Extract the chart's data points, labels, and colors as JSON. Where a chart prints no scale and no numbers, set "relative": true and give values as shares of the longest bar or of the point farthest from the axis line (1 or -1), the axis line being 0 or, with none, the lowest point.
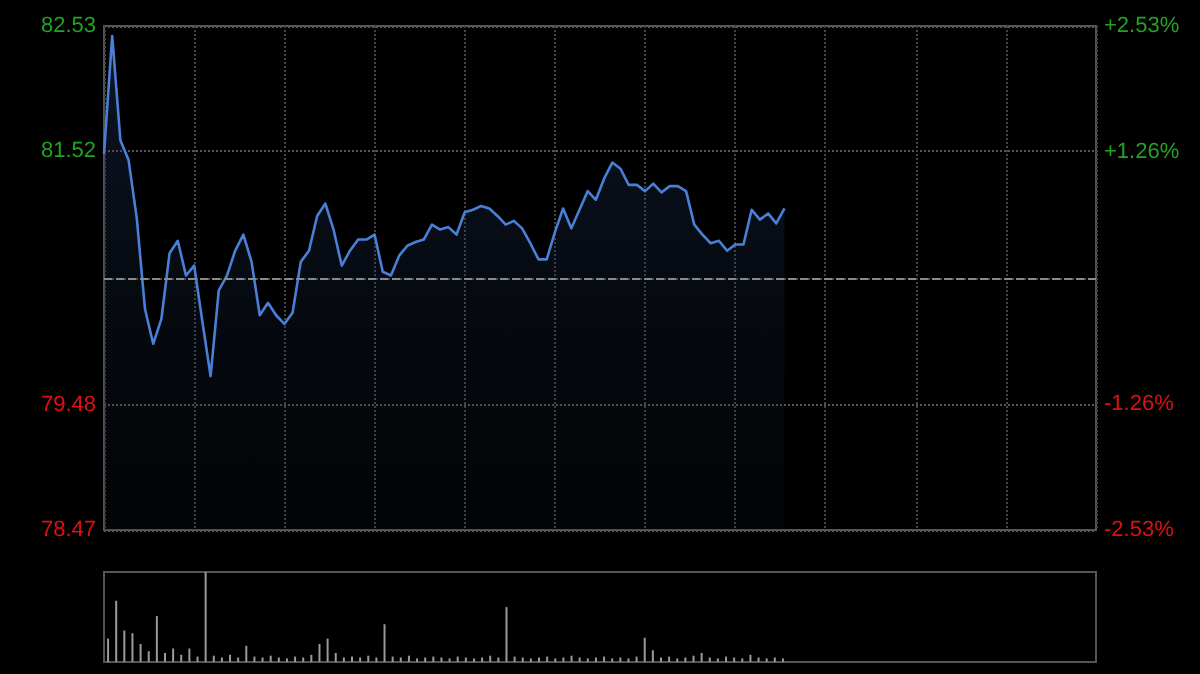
{
  "chart_data": [
    {
      "type": "area",
      "categories": [
        null,
        null,
        null,
        null,
        null,
        null,
        null,
        null,
        null,
        null,
        null,
        null,
        null,
        null,
        null,
        null,
        null,
        null,
        null,
        null,
        null,
        null,
        null,
        null,
        null,
        null,
        null,
        null,
        null,
        null,
        null,
        null,
        null,
        null,
        null,
        null,
        null,
        null,
        null,
        null,
        null,
        null,
        null,
        null,
        null,
        null,
        null,
        null,
        null,
        null,
        null,
        null,
        null,
        null,
        null,
        null,
        null,
        null,
        null,
        null,
        null,
        null,
        null,
        null,
        null,
        null,
        null,
        null,
        null,
        null,
        null,
        null,
        null,
        null,
        null,
        null,
        null,
        null,
        null,
        null,
        null,
        null,
        null,
        null
      ],
      "series": [
        {
          "color": "#4a7fd6",
          "values": [
            81.5,
            82.45,
            81.61,
            81.45,
            80.98,
            80.25,
            79.97,
            80.17,
            80.7,
            80.8,
            80.52,
            80.6,
            80.15,
            79.71,
            80.4,
            80.52,
            80.72,
            80.85,
            80.63,
            80.2,
            80.3,
            80.2,
            80.13,
            80.22,
            80.63,
            80.72,
            81.0,
            81.1,
            80.89,
            80.6,
            80.72,
            80.81,
            80.81,
            80.85,
            80.55,
            80.52,
            80.68,
            80.76,
            80.79,
            80.81,
            80.93,
            80.89,
            80.91,
            80.85,
            81.03,
            81.05,
            81.08,
            81.06,
            81.0,
            80.93,
            80.96,
            80.9,
            80.78,
            80.65,
            80.65,
            80.87,
            81.06,
            80.9,
            81.05,
            81.2,
            81.13,
            81.3,
            81.43,
            81.38,
            81.25,
            81.25,
            81.2,
            81.26,
            81.19,
            81.24,
            81.24,
            81.2,
            80.93,
            80.85,
            80.78,
            80.8,
            80.72,
            80.77,
            80.77,
            81.05,
            80.97,
            81.02,
            80.94,
            81.06
          ]
        }
      ],
      "ylim": [
        78.47,
        82.53
      ],
      "yticks": [
        78.47,
        79.48,
        {
          "value": 80.5,
          "label": null
        },
        81.52,
        82.53
      ],
      "y2lim": [
        -2.53,
        2.53
      ],
      "y2ticks": [
        {
          "value": -2.53,
          "label": "-2.53%"
        },
        {
          "value": -1.26,
          "label": "-1.26%"
        },
        {
          "value": 0,
          "label": null
        },
        {
          "value": 1.26,
          "label": "+1.26%"
        },
        {
          "value": 2.53,
          "label": "+2.53%"
        }
      ],
      "ref_lines": [
        {
          "axis": "y",
          "value": 80.5,
          "color": "#8a8a8a",
          "line_style": "dashed"
        }
      ],
      "grid": true,
      "tick_labels": "y"
    },
    {
      "type": "bar",
      "relative": true,
      "categories": [
        null,
        null,
        null,
        null,
        null,
        null,
        null,
        null,
        null,
        null,
        null,
        null,
        null,
        null,
        null,
        null,
        null,
        null,
        null,
        null,
        null,
        null,
        null,
        null,
        null,
        null,
        null,
        null,
        null,
        null,
        null,
        null,
        null,
        null,
        null,
        null,
        null,
        null,
        null,
        null,
        null,
        null,
        null,
        null,
        null,
        null,
        null,
        null,
        null,
        null,
        null,
        null,
        null,
        null,
        null,
        null,
        null,
        null,
        null,
        null,
        null,
        null,
        null,
        null,
        null,
        null,
        null,
        null,
        null,
        null,
        null,
        null,
        null,
        null,
        null,
        null,
        null,
        null,
        null,
        null,
        null,
        null,
        null,
        null
      ],
      "series": [
        {
          "color": "#9a9a9a",
          "values": [
            0.26,
            0.68,
            0.35,
            0.32,
            0.2,
            0.12,
            0.51,
            0.1,
            0.15,
            0.08,
            0.15,
            0.06,
            1,
            0.07,
            0.05,
            0.08,
            0.05,
            0.18,
            0.06,
            0.05,
            0.07,
            0.05,
            0.04,
            0.06,
            0.05,
            0.08,
            0.2,
            0.26,
            0.1,
            0.05,
            0.06,
            0.05,
            0.07,
            0.05,
            0.42,
            0.06,
            0.05,
            0.07,
            0.04,
            0.05,
            0.06,
            0.05,
            0.04,
            0.06,
            0.05,
            0.04,
            0.05,
            0.07,
            0.05,
            0.61,
            0.06,
            0.05,
            0.04,
            0.05,
            0.06,
            0.04,
            0.05,
            0.07,
            0.05,
            0.04,
            0.05,
            0.06,
            0.04,
            0.05,
            0.04,
            0.06,
            0.27,
            0.13,
            0.05,
            0.06,
            0.04,
            0.05,
            0.07,
            0.1,
            0.05,
            0.04,
            0.06,
            0.05,
            0.04,
            0.08,
            0.05,
            0.04,
            0.05,
            0.04
          ]
        }
      ],
      "tick_labels": false
    }
  ]
}
